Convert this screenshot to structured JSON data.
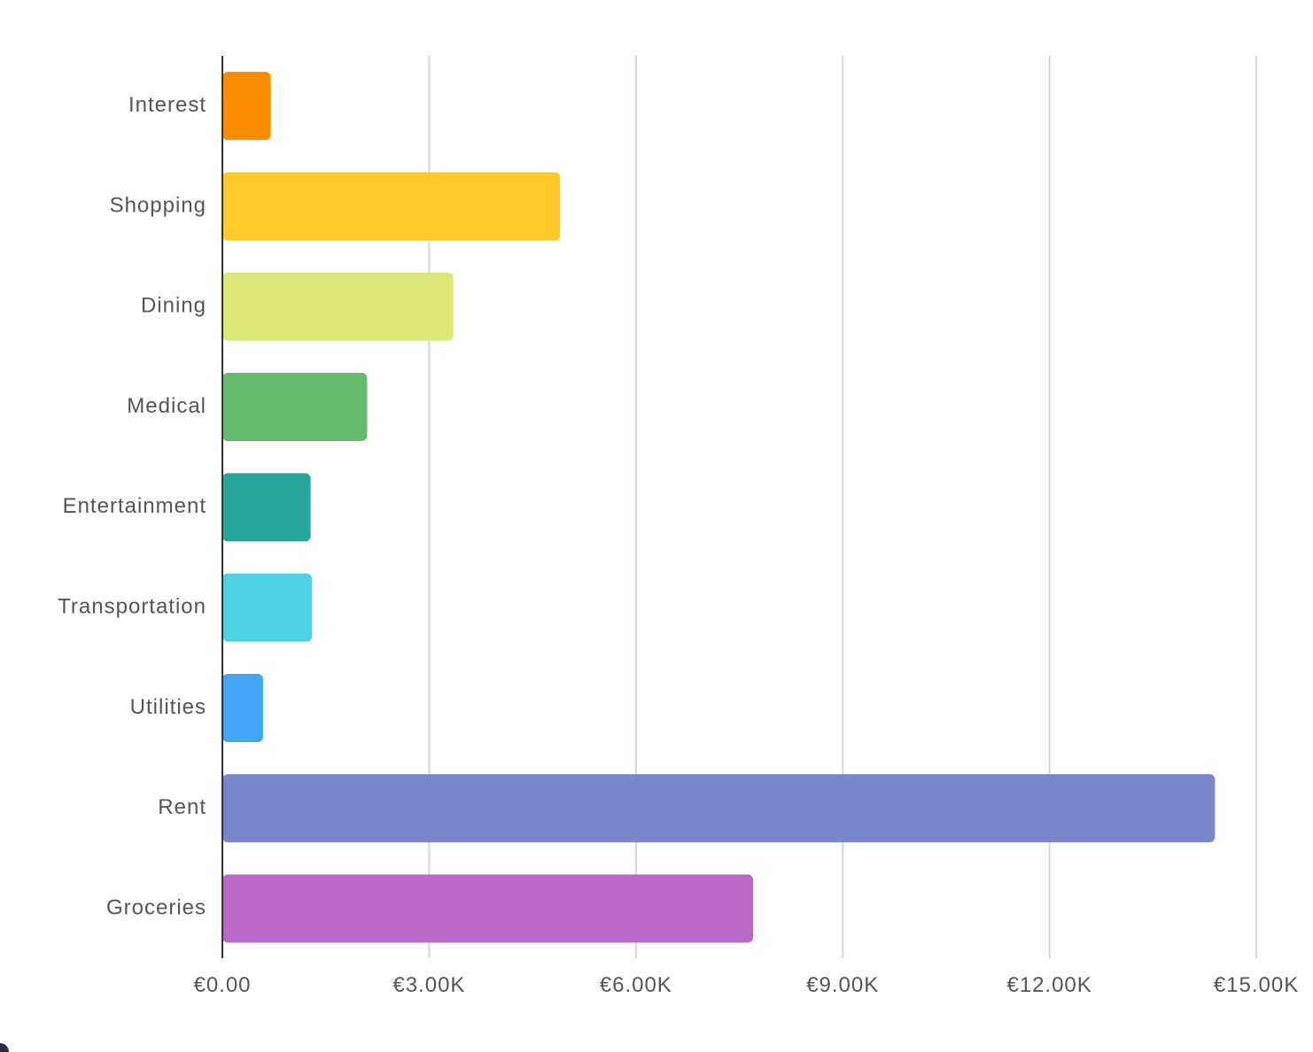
{
  "chart_data": {
    "type": "bar",
    "orientation": "horizontal",
    "categories": [
      "Interest",
      "Shopping",
      "Dining",
      "Medical",
      "Entertainment",
      "Transportation",
      "Utilities",
      "Rent",
      "Groceries"
    ],
    "values": [
      700,
      4900,
      3350,
      2100,
      1280,
      1300,
      590,
      14400,
      7700
    ],
    "colors": [
      "#FB8C00",
      "#FFCA28",
      "#DCE775",
      "#66BB6A",
      "#26A69A",
      "#4DD0E1",
      "#42A5F5",
      "#7986CB",
      "#BA68C8"
    ],
    "x_ticks": [
      0,
      3000,
      6000,
      9000,
      12000,
      15000
    ],
    "x_tick_labels": [
      "€0.00",
      "€3.00K",
      "€6.00K",
      "€9.00K",
      "€12.00K",
      "€15.00K"
    ],
    "xlim": [
      0,
      15000
    ],
    "grid": "vertical",
    "title": "",
    "xlabel": "",
    "ylabel": ""
  }
}
